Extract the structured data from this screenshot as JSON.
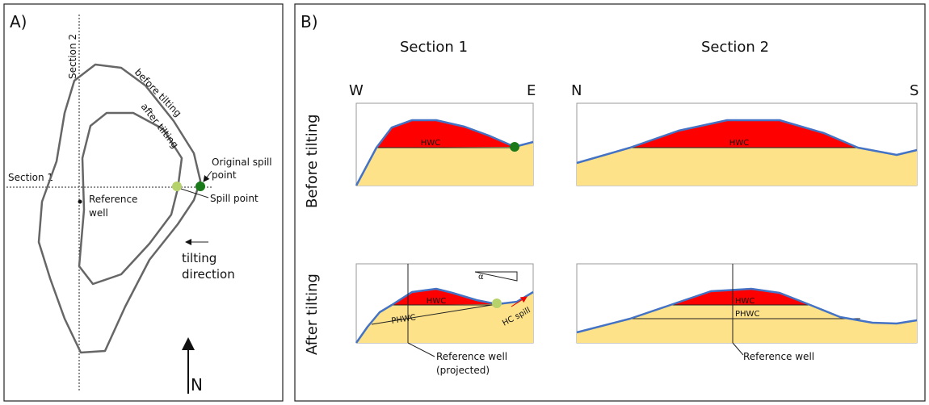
{
  "panel_a": {
    "label": "A)",
    "section_2": "Section 2",
    "section_1": "Section 1",
    "before_tilting": "before tilting",
    "after_tilting": "after tilting",
    "original_spill_point": [
      "Original spill",
      "point"
    ],
    "spill_point": "Spill point",
    "reference_well": [
      "Reference",
      "well"
    ],
    "tilting_direction": [
      "tilting",
      "direction"
    ],
    "north": "N"
  },
  "panel_b": {
    "label": "B)",
    "section_1_title": "Section 1",
    "section_2_title": "Section 2",
    "west": "W",
    "east": "E",
    "north": "N",
    "south": "S",
    "row_before": "Before tilting",
    "row_after": "After tilting",
    "section_1_before": {
      "hwc": "HWC"
    },
    "section_2_before": {
      "hwc": "HWC"
    },
    "section_1_after": {
      "hwc": "HWC",
      "phwc": "PHWC",
      "angle": "α",
      "hc_spill": "HC spill",
      "reference_well": [
        "Reference well",
        "(projected)"
      ]
    },
    "section_2_after": {
      "hwc": "HWC",
      "phwc": "PHWC",
      "reference_well": "Reference well"
    }
  }
}
